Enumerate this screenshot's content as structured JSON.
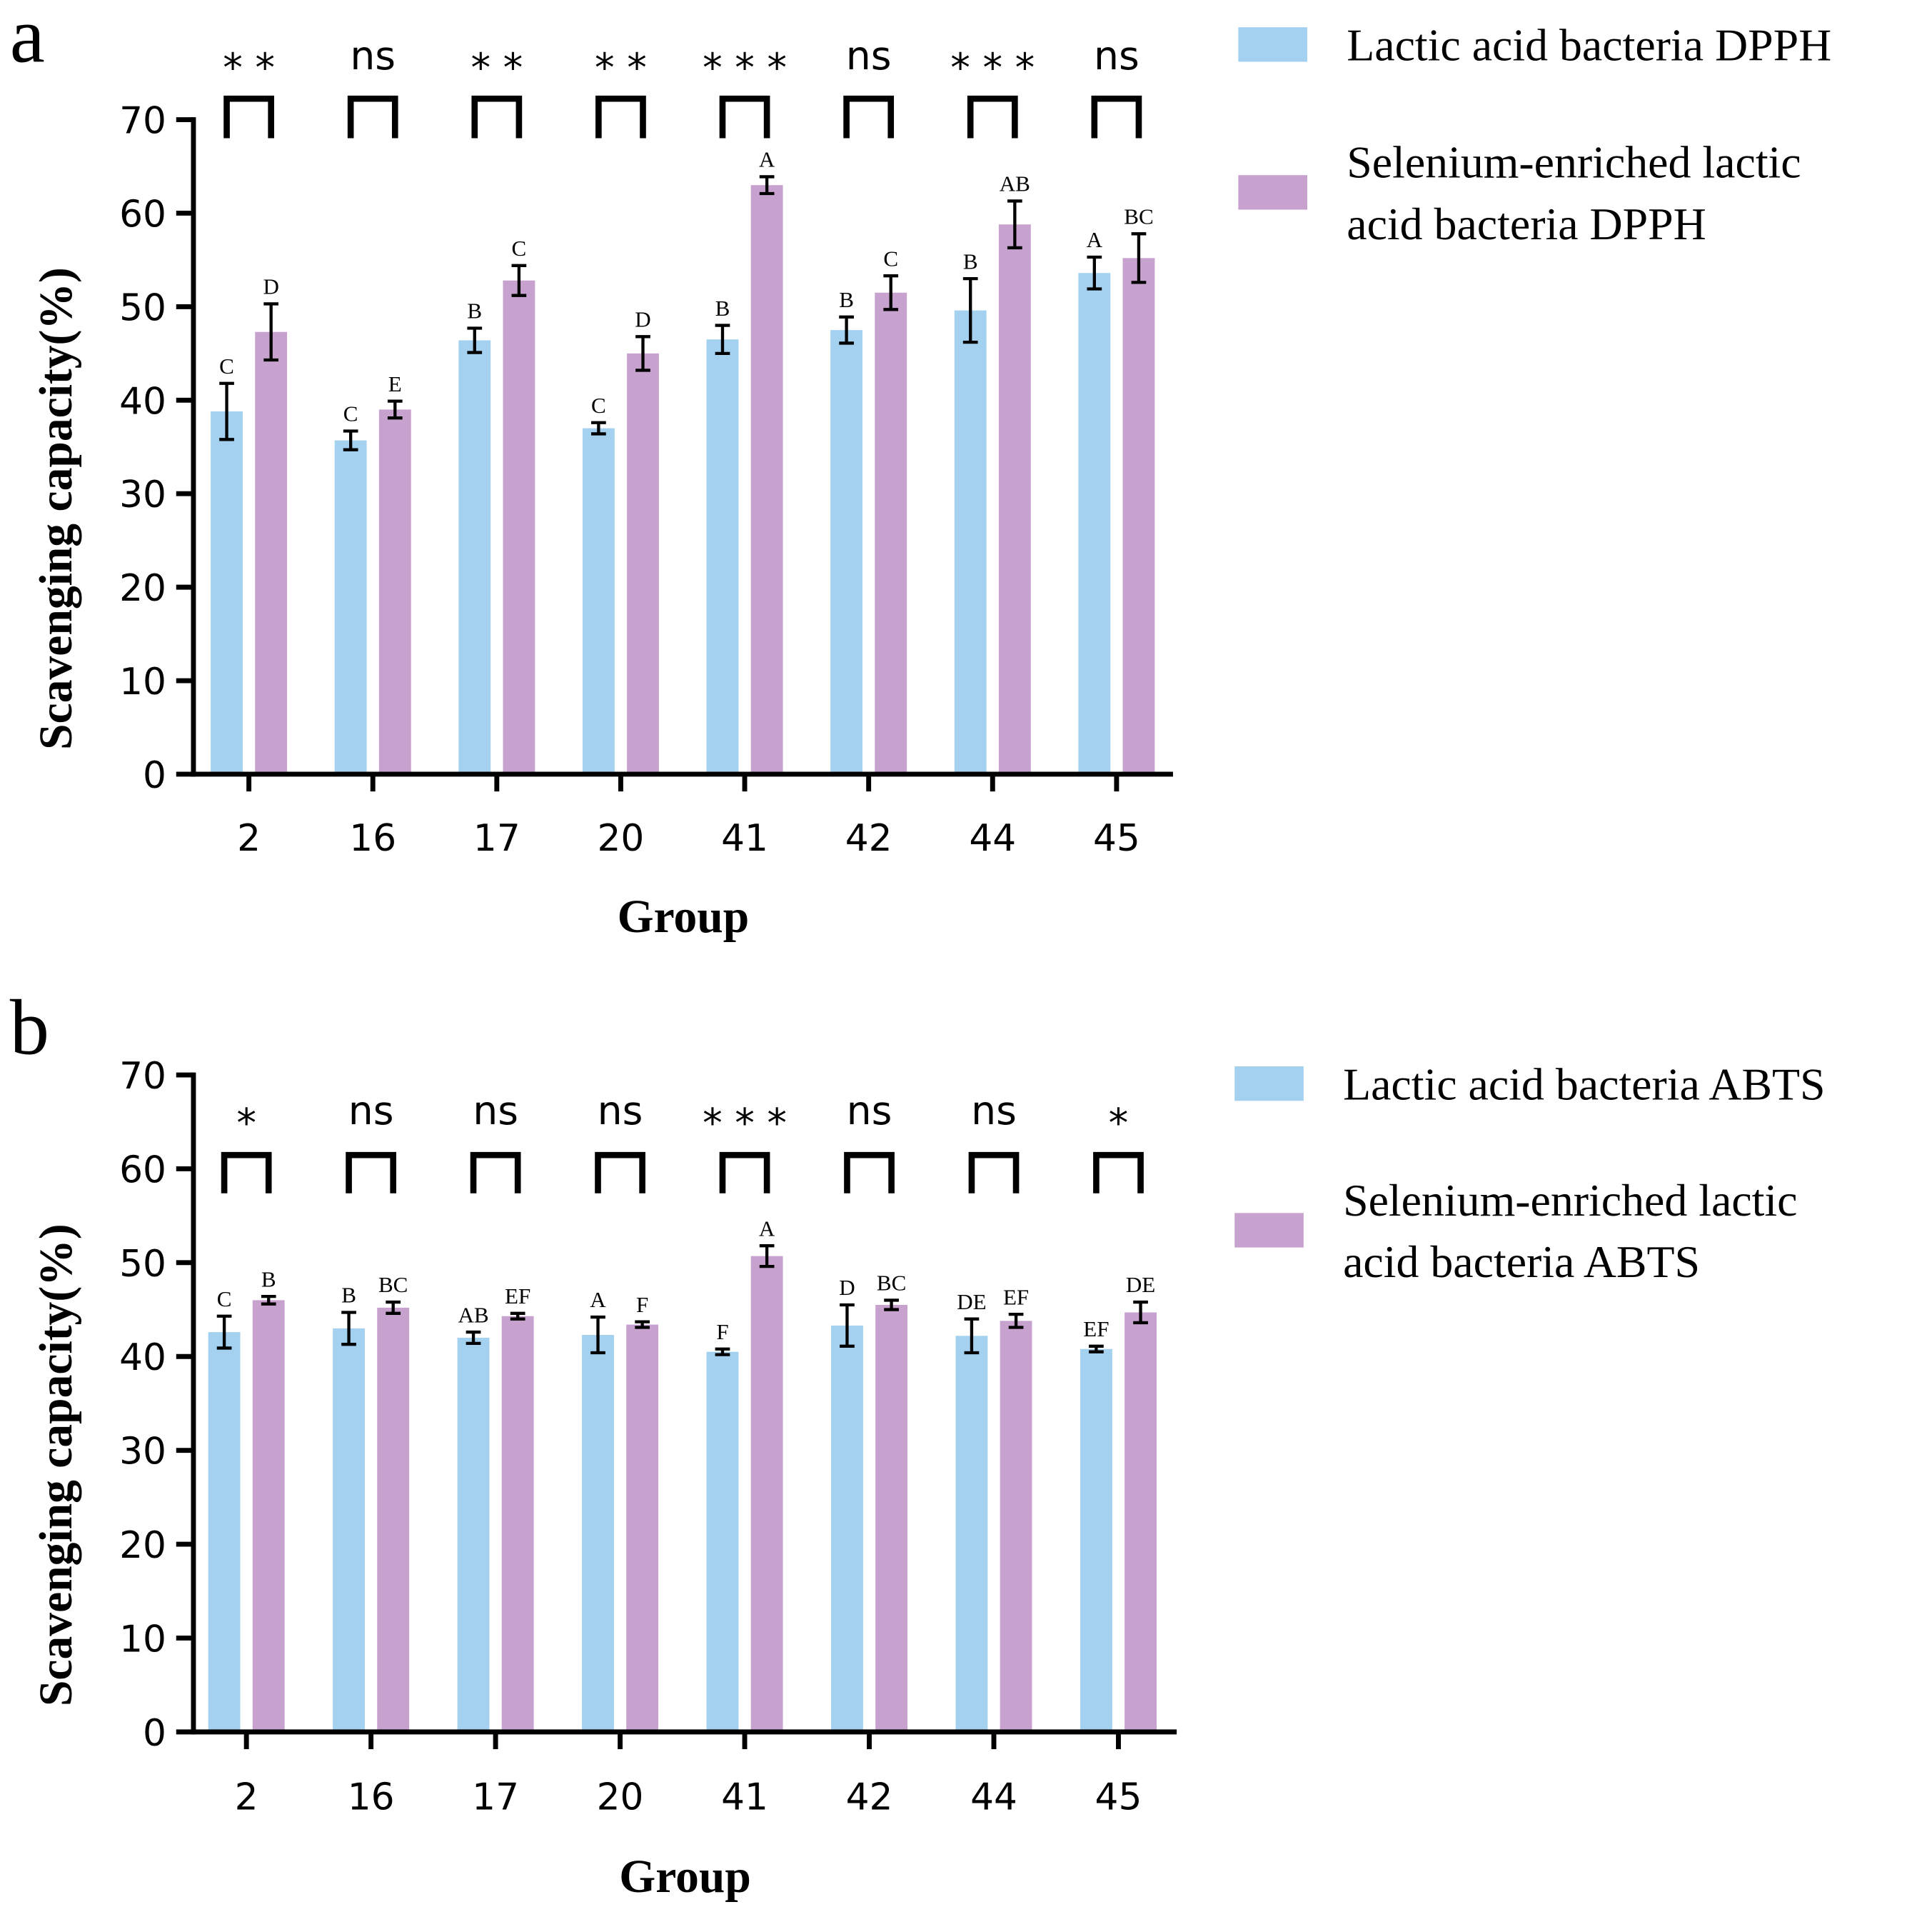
{
  "colors": {
    "blue": "#a3d1ef",
    "pink": "#c8a2cf",
    "axis": "#000000"
  },
  "chart_data": [
    {
      "type": "bar",
      "panel": "a",
      "categories": [
        "2",
        "16",
        "17",
        "20",
        "41",
        "42",
        "44",
        "45"
      ],
      "xlabel": "Group",
      "ylabel": "Scavenging capacity(%)",
      "ylim": [
        0,
        70
      ],
      "yticks": [
        0,
        10,
        20,
        30,
        40,
        50,
        60,
        70
      ],
      "legend_position": "right",
      "series": [
        {
          "name": "Lactic acid bacteria DPPH",
          "legend_lines": [
            "Lactic acid bacteria DPPH"
          ],
          "values": [
            38.8,
            35.7,
            46.4,
            37.0,
            46.5,
            47.5,
            49.6,
            53.6
          ],
          "errors": [
            3.0,
            1.0,
            1.3,
            0.6,
            1.5,
            1.4,
            3.4,
            1.7
          ],
          "letters": [
            "C",
            "C",
            "B",
            "C",
            "B",
            "B",
            "B",
            "A"
          ]
        },
        {
          "name": "Selenium-enriched lactic acid bacteria DPPH",
          "legend_lines": [
            "Selenium-enriched lactic",
            "acid bacteria DPPH"
          ],
          "values": [
            47.3,
            39.0,
            52.8,
            45.0,
            63.0,
            51.5,
            58.8,
            55.2
          ],
          "errors": [
            3.0,
            0.9,
            1.6,
            1.8,
            0.9,
            1.8,
            2.5,
            2.6
          ],
          "letters": [
            "D",
            "E",
            "C",
            "D",
            "A",
            "C",
            "AB",
            "BC"
          ]
        }
      ],
      "significance": [
        "* *",
        "ns",
        "* *",
        "* *",
        "* * *",
        "ns",
        "* * *",
        "ns"
      ]
    },
    {
      "type": "bar",
      "panel": "b",
      "categories": [
        "2",
        "16",
        "17",
        "20",
        "41",
        "42",
        "44",
        "45"
      ],
      "xlabel": "Group",
      "ylabel": "Scavenging capacity(%)",
      "ylim": [
        0,
        70
      ],
      "yticks": [
        0,
        10,
        20,
        30,
        40,
        50,
        60,
        70
      ],
      "legend_position": "right",
      "series": [
        {
          "name": "Lactic acid bacteria ABTS",
          "legend_lines": [
            "Lactic acid bacteria ABTS"
          ],
          "values": [
            42.6,
            43.0,
            42.0,
            42.3,
            40.5,
            43.3,
            42.2,
            40.8
          ],
          "errors": [
            1.7,
            1.7,
            0.6,
            1.9,
            0.3,
            2.2,
            1.8,
            0.3
          ],
          "letters": [
            "C",
            "B",
            "AB",
            "A",
            "F",
            "D",
            "DE",
            "EF"
          ]
        },
        {
          "name": "Selenium-enriched lactic acid bacteria ABTS",
          "legend_lines": [
            "Selenium-enriched lactic",
            "acid bacteria ABTS"
          ],
          "values": [
            46.0,
            45.2,
            44.3,
            43.4,
            50.7,
            45.5,
            43.8,
            44.7
          ],
          "errors": [
            0.4,
            0.6,
            0.3,
            0.3,
            1.1,
            0.5,
            0.7,
            1.1
          ],
          "letters": [
            "B",
            "BC",
            "EF",
            "F",
            "A",
            "BC",
            "EF",
            "DE"
          ]
        }
      ],
      "significance": [
        "*",
        "ns",
        "ns",
        "ns",
        "* * *",
        "ns",
        "ns",
        "*"
      ]
    }
  ]
}
